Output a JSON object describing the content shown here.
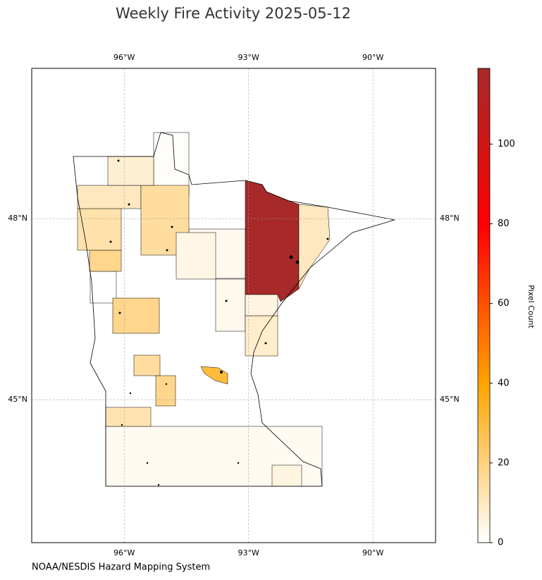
{
  "chart_data": {
    "type": "choropleth",
    "title": "Weekly Fire Activity 2025-05-12",
    "source": "NOAA/NESDIS Hazard Mapping System",
    "colorbar_label": "Pixel Count",
    "values": [
      2,
      1,
      3,
      3,
      0,
      118,
      10,
      30,
      18,
      18,
      13,
      10,
      15,
      7,
      18,
      15,
      12,
      8,
      5,
      5,
      4
    ],
    "vlim": [
      0,
      119
    ],
    "vticks": [
      0,
      20,
      40,
      60,
      80,
      100
    ],
    "colors": [
      "#ffffff",
      "#ffa500",
      "#ff0000",
      "#a52a2a"
    ],
    "xlim": [
      -98.23,
      -88.49
    ],
    "ylim": [
      42.63,
      50.49
    ],
    "xticks": [
      {
        "value": -96,
        "label": "96°W"
      },
      {
        "value": -93,
        "label": "93°W"
      },
      {
        "value": -90,
        "label": "90°W"
      }
    ],
    "yticks": [
      {
        "value": 45,
        "label": "45°N"
      },
      {
        "value": 48,
        "label": "48°N"
      }
    ],
    "grid": true
  }
}
